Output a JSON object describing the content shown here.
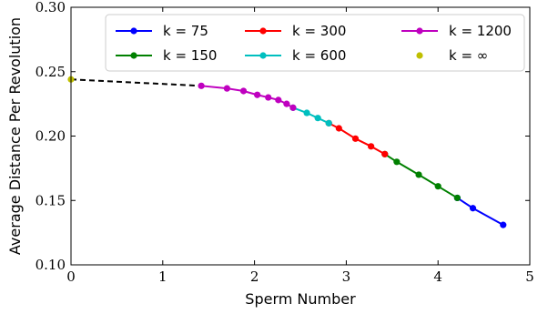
{
  "chart_data": {
    "type": "line",
    "title": "",
    "xlabel": "Sperm Number",
    "ylabel": "Average Distance Per Revolution",
    "xlim": [
      0,
      5
    ],
    "ylim": [
      0.1,
      0.3
    ],
    "xticks": [
      "0",
      "1",
      "2",
      "3",
      "4",
      "5"
    ],
    "yticks": [
      "0.10",
      "0.15",
      "0.20",
      "0.25",
      "0.30"
    ],
    "grid": false,
    "legend_position": "top-right",
    "series": [
      {
        "name": "k = 75",
        "color": "#0000ff",
        "style": "solid",
        "marker": "circle",
        "x": [
          4.21,
          4.38,
          4.71
        ],
        "y": [
          0.152,
          0.144,
          0.131
        ]
      },
      {
        "name": "k = 150",
        "color": "#008000",
        "style": "solid",
        "marker": "circle",
        "x": [
          3.42,
          3.55,
          3.79,
          4.0,
          4.21
        ],
        "y": [
          0.186,
          0.18,
          0.17,
          0.161,
          0.152
        ]
      },
      {
        "name": "k = 300",
        "color": "#ff0000",
        "style": "solid",
        "marker": "circle",
        "x": [
          2.81,
          2.92,
          3.1,
          3.27,
          3.42
        ],
        "y": [
          0.21,
          0.206,
          0.198,
          0.192,
          0.186
        ]
      },
      {
        "name": "k = 600",
        "color": "#00bfbf",
        "style": "solid",
        "marker": "circle",
        "x": [
          2.42,
          2.57,
          2.69,
          2.81
        ],
        "y": [
          0.222,
          0.218,
          0.214,
          0.21
        ]
      },
      {
        "name": "k = 1200",
        "color": "#bf00bf",
        "style": "solid",
        "marker": "circle",
        "x": [
          1.42,
          1.7,
          1.88,
          2.03,
          2.15,
          2.26,
          2.35,
          2.42
        ],
        "y": [
          0.239,
          0.237,
          0.235,
          0.232,
          0.23,
          0.228,
          0.225,
          0.222
        ]
      },
      {
        "name": "k = ∞",
        "color": "#bfbf00",
        "style": "none",
        "marker": "circle",
        "x": [
          0.0
        ],
        "y": [
          0.244
        ]
      }
    ],
    "extrapolation": {
      "color": "#000000",
      "style": "dashed",
      "x": [
        0.0,
        1.42
      ],
      "y": [
        0.244,
        0.239
      ]
    }
  }
}
